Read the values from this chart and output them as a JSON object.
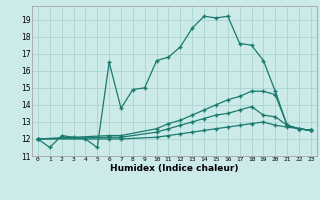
{
  "title": "",
  "xlabel": "Humidex (Indice chaleur)",
  "bg_color": "#cceae7",
  "line_color": "#1a7a6e",
  "grid_color": "#aad4d0",
  "xlim": [
    -0.5,
    23.5
  ],
  "ylim": [
    11,
    19.8
  ],
  "xticks": [
    0,
    1,
    2,
    3,
    4,
    5,
    6,
    7,
    8,
    9,
    10,
    11,
    12,
    13,
    14,
    15,
    16,
    17,
    18,
    19,
    20,
    21,
    22,
    23
  ],
  "yticks": [
    11,
    12,
    13,
    14,
    15,
    16,
    17,
    18,
    19
  ],
  "line1_x": [
    0,
    1,
    2,
    3,
    4,
    5,
    6,
    7,
    8,
    9,
    10,
    11,
    12,
    13,
    14,
    15,
    16,
    17,
    18,
    19,
    20,
    21,
    22,
    23
  ],
  "line1_y": [
    12.0,
    11.5,
    12.2,
    12.1,
    12.0,
    11.5,
    16.5,
    13.8,
    14.9,
    15.0,
    16.6,
    16.8,
    17.4,
    18.5,
    19.2,
    19.1,
    19.2,
    17.6,
    17.5,
    16.6,
    14.8,
    12.8,
    12.6,
    12.5
  ],
  "line2_x": [
    0,
    6,
    7,
    10,
    11,
    12,
    13,
    14,
    15,
    16,
    17,
    18,
    19,
    20,
    21,
    22,
    23
  ],
  "line2_y": [
    12.0,
    12.2,
    12.2,
    12.6,
    12.9,
    13.1,
    13.4,
    13.7,
    14.0,
    14.3,
    14.5,
    14.8,
    14.8,
    14.6,
    12.8,
    12.6,
    12.5
  ],
  "line3_x": [
    0,
    6,
    7,
    10,
    11,
    12,
    13,
    14,
    15,
    16,
    17,
    18,
    19,
    20,
    21,
    22,
    23
  ],
  "line3_y": [
    12.0,
    12.1,
    12.1,
    12.4,
    12.6,
    12.8,
    13.0,
    13.2,
    13.4,
    13.5,
    13.7,
    13.9,
    13.4,
    13.3,
    12.8,
    12.6,
    12.5
  ],
  "line4_x": [
    0,
    6,
    7,
    10,
    11,
    12,
    13,
    14,
    15,
    16,
    17,
    18,
    19,
    20,
    21,
    22,
    23
  ],
  "line4_y": [
    12.0,
    12.0,
    12.0,
    12.1,
    12.2,
    12.3,
    12.4,
    12.5,
    12.6,
    12.7,
    12.8,
    12.9,
    13.0,
    12.8,
    12.7,
    12.6,
    12.5
  ]
}
